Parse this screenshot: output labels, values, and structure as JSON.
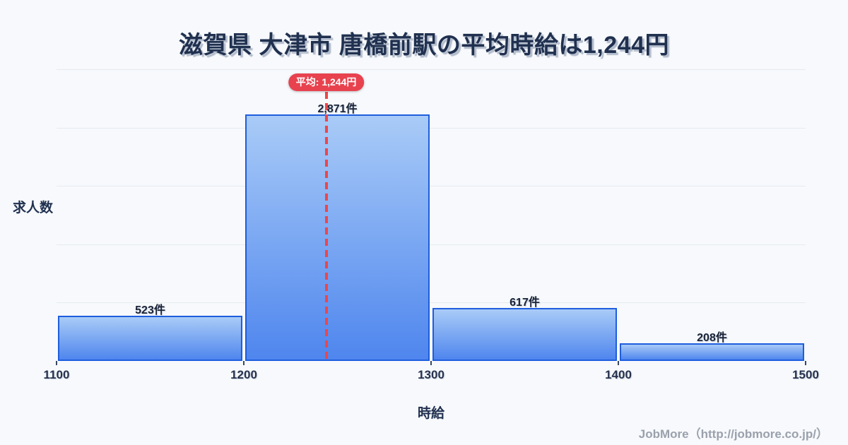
{
  "title": {
    "text": "滋賀県 大津市 唐橋前駅の平均時給は1,244円",
    "color": "#20304f"
  },
  "chart_data": {
    "type": "bar",
    "subtype": "histogram",
    "title": "滋賀県 大津市 唐橋前駅の平均時給は1,244円",
    "xlabel": "時給",
    "ylabel": "求人数",
    "bin_edges": [
      1100,
      1200,
      1300,
      1400,
      1500
    ],
    "x_tick_labels": [
      "1100",
      "1200",
      "1300",
      "1400",
      "1500"
    ],
    "values": [
      523,
      2871,
      617,
      208
    ],
    "value_labels": [
      "523件",
      "2,871件",
      "617件",
      "208件"
    ],
    "xlim": [
      1100,
      1500
    ],
    "ylim": [
      0,
      3400
    ],
    "grid": true,
    "gridline_count": 5,
    "legend": "none",
    "average": {
      "value": 1244,
      "badge_label": "平均: 1,244円"
    }
  },
  "colors": {
    "background": "#f7f9fc",
    "title_text": "#20304f",
    "axis_text": "#27324e",
    "label_text": "#1a2338",
    "grid": "#e6ebf2",
    "bar_fill_top": "#a9cbf7",
    "bar_fill_bottom": "#4f86ee",
    "bar_border": "#1e5ede",
    "tick_mark": "#3b4660",
    "average_red": "#e8424f",
    "average_line_red": "#ee4648",
    "footer_text": "#9aa1ac"
  },
  "footer": {
    "text": "JobMore（http://jobmore.co.jp/）"
  }
}
